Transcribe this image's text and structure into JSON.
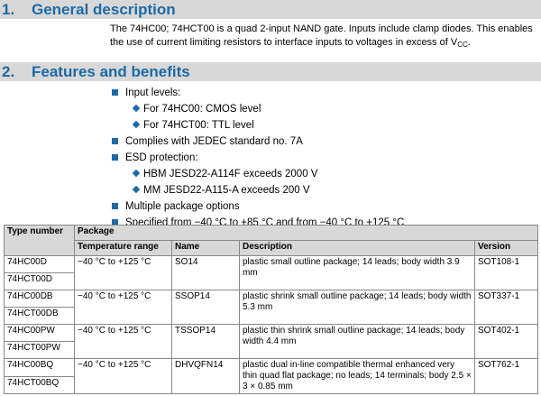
{
  "section1": {
    "number": "1.",
    "title": "General description"
  },
  "description": {
    "text": "The 74HC00; 74HCT00 is a quad 2-input NAND gate. Inputs include clamp diodes. This enables the use of current limiting resistors to interface inputs to voltages in excess of V",
    "subscript": "CC",
    "end": "."
  },
  "section2": {
    "number": "2.",
    "title": "Features and benefits"
  },
  "features": [
    {
      "level": 1,
      "text": "Input levels:"
    },
    {
      "level": 2,
      "text": "For 74HC00: CMOS level"
    },
    {
      "level": 2,
      "text": "For 74HCT00: TTL level"
    },
    {
      "level": 1,
      "text": "Complies with JEDEC standard no. 7A"
    },
    {
      "level": 1,
      "text": "ESD protection:"
    },
    {
      "level": 2,
      "text": "HBM JESD22-A114F exceeds 2000 V"
    },
    {
      "level": 2,
      "text": "MM JESD22-A115-A exceeds 200 V"
    },
    {
      "level": 1,
      "text": "Multiple package options"
    },
    {
      "level": 1,
      "text": "Specified from −40 °C to +85 °C and from −40 °C to +125 °C"
    }
  ],
  "table": {
    "header_type": "Type number",
    "header_package": "Package",
    "columns": [
      "Temperature range",
      "Name",
      "Description",
      "Version"
    ],
    "rows": [
      {
        "types": [
          "74HC00D",
          "74HCT00D"
        ],
        "temp": "−40 °C to +125 °C",
        "name": "SO14",
        "description": "plastic small outline package; 14 leads; body width 3.9 mm",
        "version": "SOT108-1"
      },
      {
        "types": [
          "74HC00DB",
          "74HCT00DB"
        ],
        "temp": "−40 °C to +125 °C",
        "name": "SSOP14",
        "description": "plastic shrink small outline package; 14 leads; body width 5.3 mm",
        "version": "SOT337-1"
      },
      {
        "types": [
          "74HC00PW",
          "74HCT00PW"
        ],
        "temp": "−40 °C to +125 °C",
        "name": "TSSOP14",
        "description": "plastic thin shrink small outline package; 14 leads; body width 4.4 mm",
        "version": "SOT402-1"
      },
      {
        "types": [
          "74HC00BQ",
          "74HCT00BQ"
        ],
        "temp": "−40 °C to +125 °C",
        "name": "DHVQFN14",
        "description": "plastic dual in-line compatible thermal enhanced very thin quad flat package; no leads; 14 terminals; body 2.5 × 3 × 0.85 mm",
        "version": "SOT762-1"
      }
    ]
  },
  "colors": {
    "accent": "#1c6aa6",
    "header_bg": "#d8d8d8",
    "border": "#888888"
  }
}
